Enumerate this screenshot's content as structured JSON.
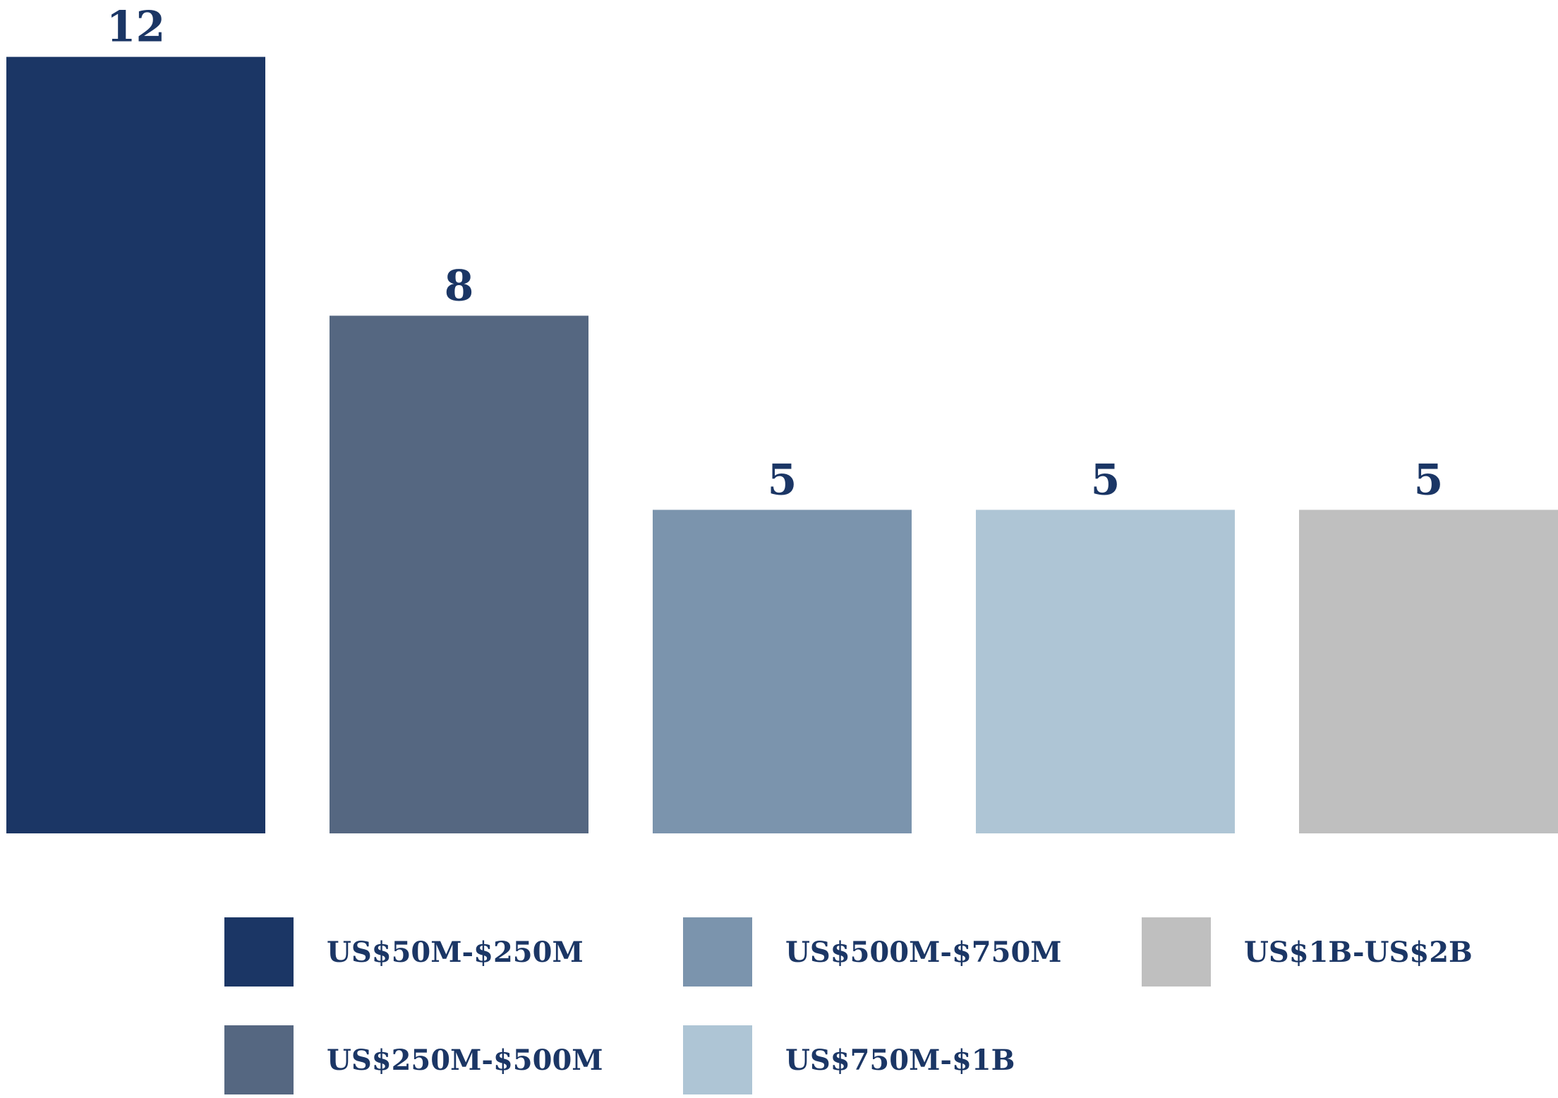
{
  "chart_data": {
    "type": "bar",
    "title": "",
    "xlabel": "",
    "ylabel": "",
    "ylim": [
      0,
      12
    ],
    "grid": false,
    "legend_position": "bottom",
    "label_color": "#1b3665",
    "categories": [
      "US$50M-$250M",
      "US$250M-$500M",
      "US$500M-$750M",
      "US$750M-$1B",
      "US$1B-US$2B"
    ],
    "values": [
      12,
      8,
      5,
      5,
      5
    ],
    "colors": [
      "#1b3665",
      "#556781",
      "#7b94ad",
      "#aec5d5",
      "#bfbfbf"
    ],
    "legend": [
      {
        "label": "US$50M-$250M",
        "color": "#1b3665"
      },
      {
        "label": "US$250M-$500M",
        "color": "#556781"
      },
      {
        "label": "US$500M-$750M",
        "color": "#7b94ad"
      },
      {
        "label": "US$750M-$1B",
        "color": "#aec5d5"
      },
      {
        "label": "US$1B-US$2B",
        "color": "#bfbfbf"
      }
    ]
  }
}
